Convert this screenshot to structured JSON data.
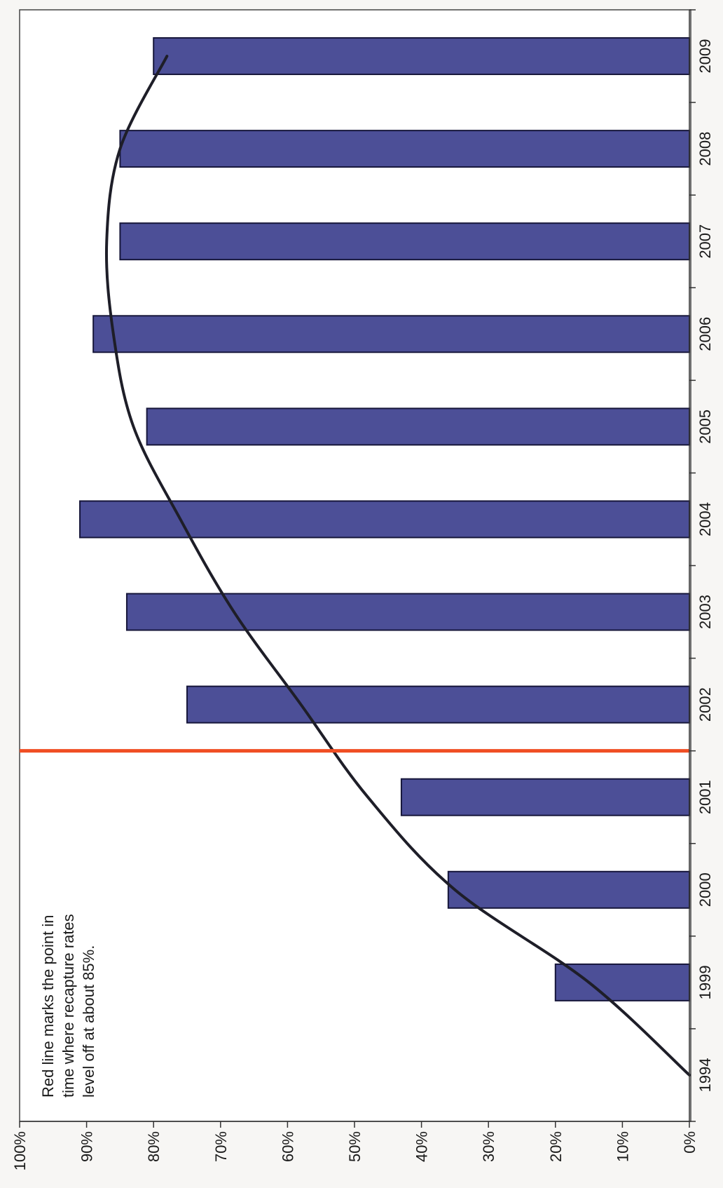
{
  "chart_data": {
    "type": "bar",
    "orientation": "rotated-90-clockwise",
    "title": "",
    "xlabel": "",
    "ylabel": "",
    "categories": [
      "1994",
      "1999",
      "2000",
      "2001",
      "2002",
      "2003",
      "2004",
      "2005",
      "2006",
      "2007",
      "2008",
      "2009"
    ],
    "series": [
      {
        "values": [
          0,
          20,
          36,
          43,
          75,
          84,
          91,
          81,
          89,
          85,
          85,
          80
        ]
      }
    ],
    "ylim": [
      0,
      100
    ],
    "y_ticks": [
      "0%",
      "10%",
      "20%",
      "30%",
      "40%",
      "50%",
      "60%",
      "70%",
      "80%",
      "90%",
      "100%"
    ],
    "trend_curve": {
      "color": "#1e1e28",
      "points": [
        [
          0,
          0
        ],
        [
          1,
          15
        ],
        [
          2,
          35
        ],
        [
          3,
          48
        ],
        [
          4,
          58
        ],
        [
          5,
          68
        ],
        [
          6,
          76
        ],
        [
          7,
          83
        ],
        [
          8,
          86
        ],
        [
          9,
          87
        ],
        [
          10,
          85
        ],
        [
          11,
          78
        ]
      ]
    },
    "marker_line": {
      "between_categories": [
        "2001",
        "2002"
      ],
      "color": "#f04e23"
    },
    "annotation": {
      "lines": [
        "Red line marks the point in",
        "time where recapture rates",
        "level off at about 85%."
      ]
    },
    "colors": {
      "bar_fill": "#4c4f97",
      "bar_edge": "#16163a",
      "axis": "#333333"
    },
    "grid": false,
    "legend": "none"
  }
}
